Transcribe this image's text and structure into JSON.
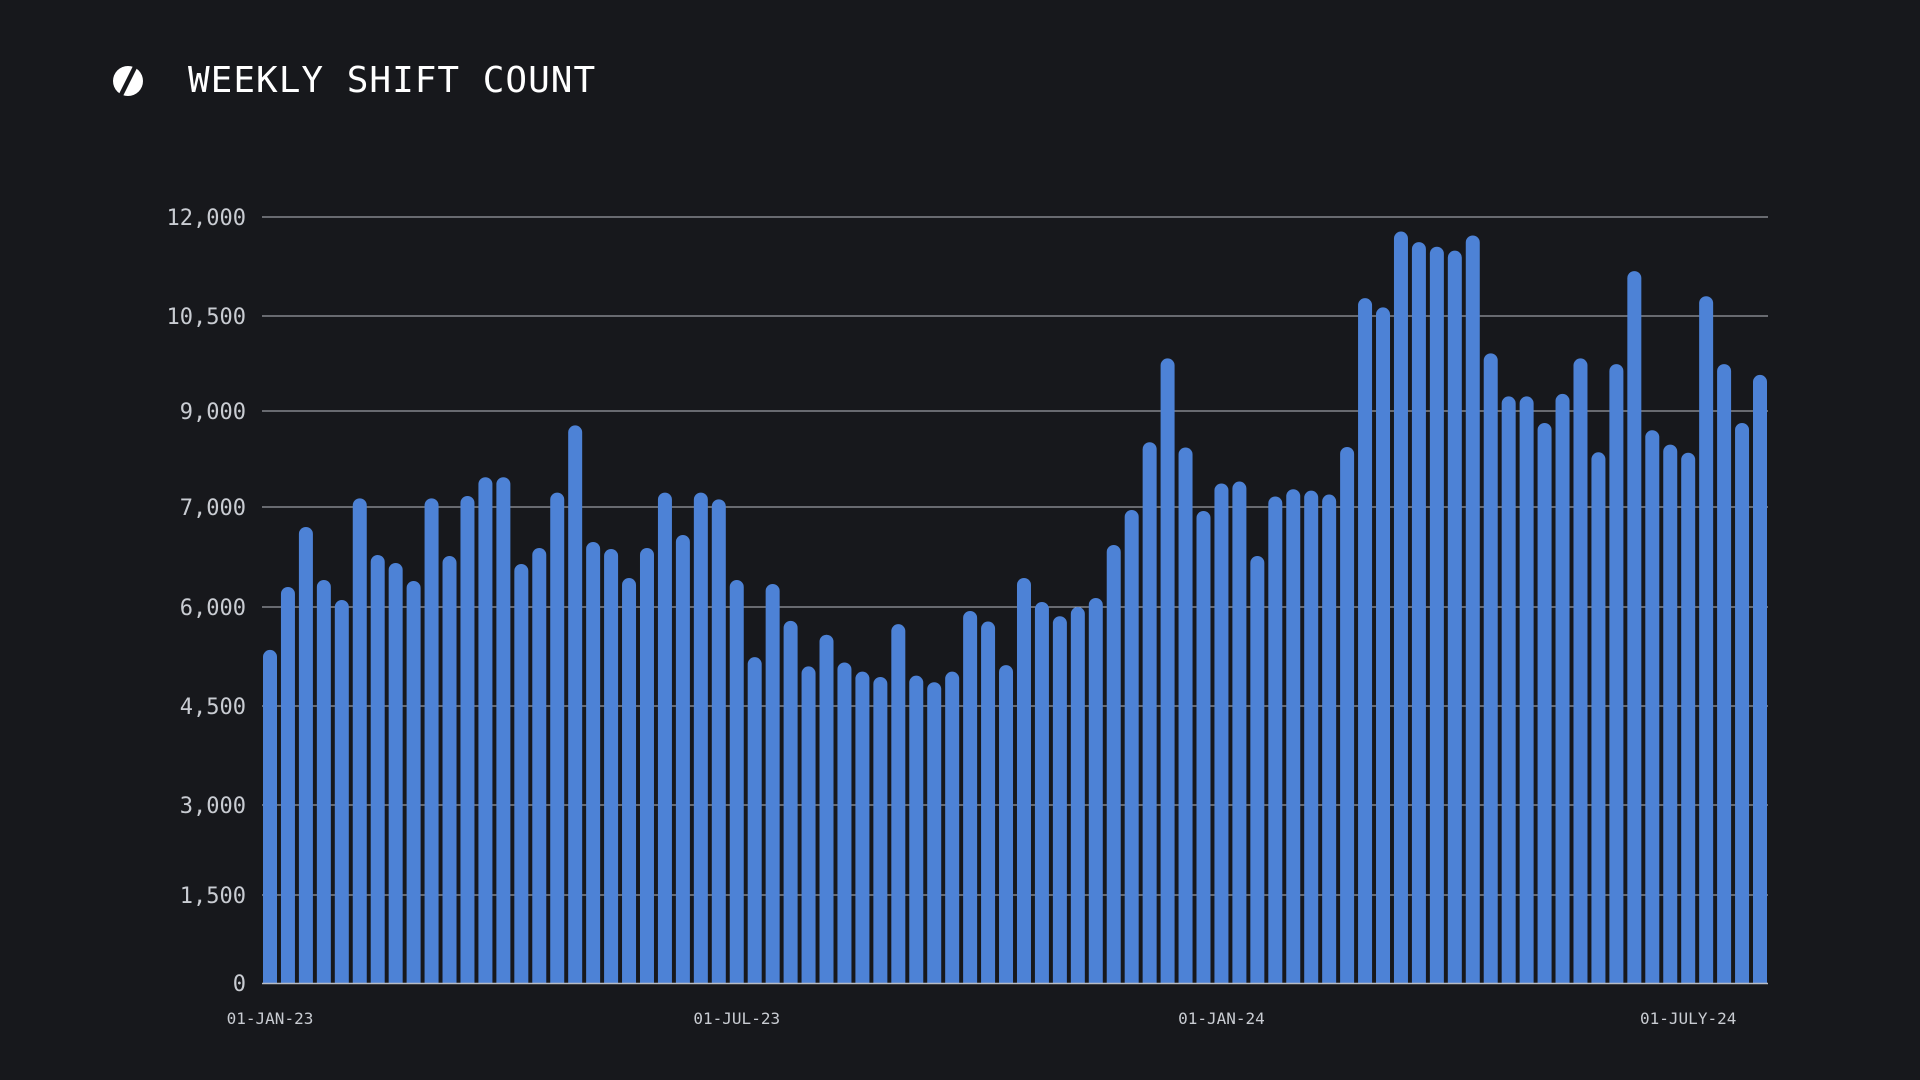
{
  "header": {
    "logo_icon": "s-slash-logo-icon",
    "title": "WEEKLY SHIFT COUNT"
  },
  "colors": {
    "background": "#17181c",
    "bar": "#4d82d6",
    "grid": "#b8bcc4",
    "text": "#c9ccd2",
    "title": "#ffffff"
  },
  "chart_data": {
    "type": "bar",
    "title": "WEEKLY SHIFT COUNT",
    "xlabel": "",
    "ylabel": "",
    "grid": true,
    "y_ticks": [
      0,
      1500,
      3000,
      4500,
      6000,
      7000,
      9000,
      10500,
      12000
    ],
    "y_tick_labels": [
      "0",
      "1,500",
      "3,000",
      "4,500",
      "6,000",
      "7,000",
      "9,000",
      "10,500",
      "12,000"
    ],
    "x_tick_labels": [
      {
        "label": "01-JAN-23",
        "bar_index": 0
      },
      {
        "label": "01-JUL-23",
        "bar_index": 26
      },
      {
        "label": "01-JAN-24",
        "bar_index": 53
      },
      {
        "label": "01-JULY-24",
        "bar_index": 79
      }
    ],
    "values": [
      5350,
      6200,
      6800,
      6270,
      6070,
      7180,
      6520,
      6440,
      6260,
      7180,
      6510,
      7230,
      7620,
      7620,
      6430,
      6590,
      7300,
      8700,
      6650,
      6580,
      6290,
      6590,
      7300,
      6720,
      7300,
      7160,
      6270,
      5240,
      6230,
      5790,
      5100,
      5580,
      5160,
      5020,
      4940,
      5740,
      4960,
      4860,
      5020,
      5940,
      5780,
      5120,
      6290,
      6050,
      5860,
      6000,
      6090,
      6620,
      6970,
      8350,
      9830,
      8240,
      6960,
      7490,
      7530,
      6510,
      7220,
      7370,
      7340,
      7260,
      8250,
      10770,
      10630,
      11780,
      11620,
      11550,
      11490,
      11720,
      9910,
      9230,
      9230,
      8750,
      9270,
      9830,
      8140,
      9740,
      11180,
      8600,
      8300,
      8130,
      10800,
      9740,
      8750,
      9570
    ]
  }
}
